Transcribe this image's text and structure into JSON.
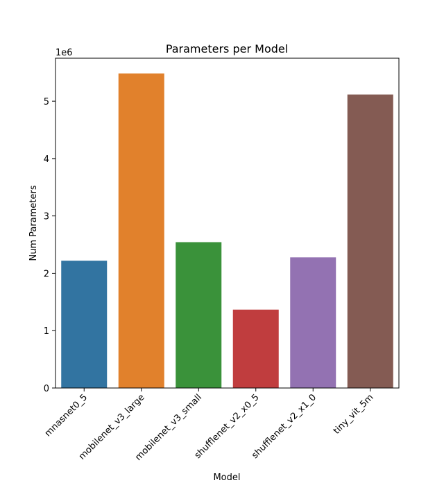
{
  "chart_data": {
    "type": "bar",
    "title": "Parameters per Model",
    "xlabel": "Model",
    "ylabel": "Num Parameters",
    "y_offset_label": "1e6",
    "y_scale_factor": 1000000,
    "ylim": [
      0,
      5750000
    ],
    "yticks": [
      0,
      1000000,
      2000000,
      3000000,
      4000000,
      5000000
    ],
    "ytick_labels": [
      "0",
      "1",
      "2",
      "3",
      "4",
      "5"
    ],
    "grid": false,
    "legend": "none",
    "categories": [
      "mnasnet0_5",
      "mobilenet_v3_large",
      "mobilenet_v3_small",
      "shufflenet_v2_x0_5",
      "shufflenet_v2_x1_0",
      "tiny_vit_5m"
    ],
    "values": [
      2218512,
      5483032,
      2542856,
      1366792,
      2278604,
      5116080
    ],
    "colors": [
      "#3274a1",
      "#e1812c",
      "#3a923a",
      "#c03d3e",
      "#9372b2",
      "#845b53"
    ]
  }
}
